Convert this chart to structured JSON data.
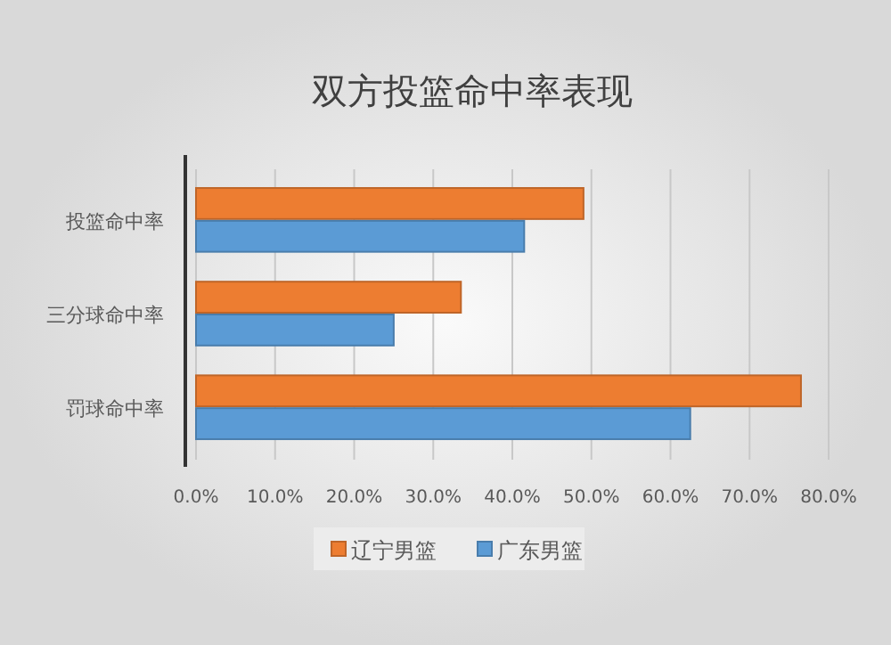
{
  "chart_data": {
    "type": "bar",
    "orientation": "horizontal",
    "title": "双方投篮命中率表现",
    "categories": [
      "投篮命中率",
      "三分球命中率",
      "罚球命中率"
    ],
    "series": [
      {
        "name": "辽宁男篮",
        "color": "#ed7d31",
        "values": [
          49,
          33.5,
          76.5
        ]
      },
      {
        "name": "广东男篮",
        "color": "#5b9bd5",
        "values": [
          41.5,
          25,
          62.5
        ]
      }
    ],
    "xlim": [
      0,
      80
    ],
    "xticks": [
      {
        "value": 0,
        "label": "0.0%"
      },
      {
        "value": 10,
        "label": "10.0%"
      },
      {
        "value": 20,
        "label": "20.0%"
      },
      {
        "value": 30,
        "label": "30.0%"
      },
      {
        "value": 40,
        "label": "40.0%"
      },
      {
        "value": 50,
        "label": "50.0%"
      },
      {
        "value": 60,
        "label": "60.0%"
      },
      {
        "value": 70,
        "label": "70.0%"
      },
      {
        "value": 80,
        "label": "80.0%"
      }
    ],
    "grid": "x",
    "legend": "bottom"
  }
}
